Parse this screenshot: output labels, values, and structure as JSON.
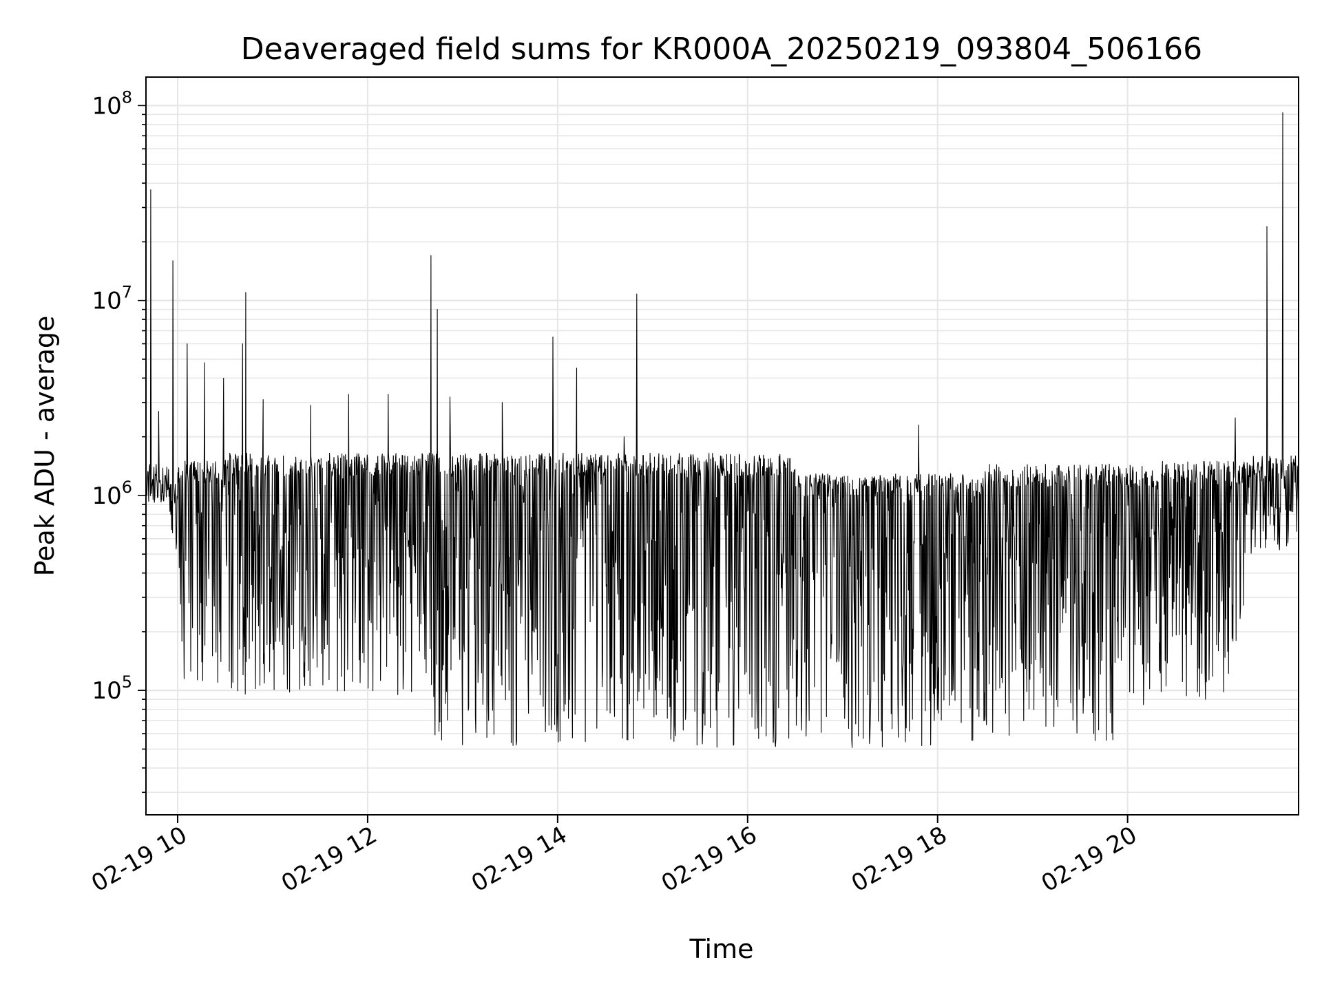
{
  "chart_data": {
    "type": "line",
    "title": "Deaveraged field sums for KR000A_20250219_093804_506166",
    "xlabel": "Time",
    "ylabel": "Peak ADU - average",
    "yscale": "log",
    "grid": true,
    "line_color": "#000000",
    "xlim": [
      "2025-02-19 09:40",
      "2025-02-19 21:48"
    ],
    "ylim": [
      23000,
      140000000
    ],
    "x_ticks": [
      {
        "t": "2025-02-19 10:00",
        "label": "02-19 10"
      },
      {
        "t": "2025-02-19 12:00",
        "label": "02-19 12"
      },
      {
        "t": "2025-02-19 14:00",
        "label": "02-19 14"
      },
      {
        "t": "2025-02-19 16:00",
        "label": "02-19 16"
      },
      {
        "t": "2025-02-19 18:00",
        "label": "02-19 18"
      },
      {
        "t": "2025-02-19 20:00",
        "label": "02-19 20"
      }
    ],
    "y_ticks": [
      {
        "value": 100000,
        "base": "10",
        "exp": "5"
      },
      {
        "value": 1000000,
        "base": "10",
        "exp": "6"
      },
      {
        "value": 10000000,
        "base": "10",
        "exp": "7"
      },
      {
        "value": 100000000,
        "base": "10",
        "exp": "8"
      }
    ],
    "series": [
      {
        "style": "dense-signal",
        "x_start": "2025-02-19 09:40",
        "x_end": "2025-02-19 21:48",
        "segments": [
          {
            "t0": "2025-02-19 09:40",
            "t1": "2025-02-19 09:55",
            "upper": 1500000,
            "lower": 900000
          },
          {
            "t0": "2025-02-19 09:55",
            "t1": "2025-02-19 10:00",
            "upper": 1200000,
            "lower": 400000
          },
          {
            "t0": "2025-02-19 10:00",
            "t1": "2025-02-19 10:30",
            "upper": 1500000,
            "lower": 90000
          },
          {
            "t0": "2025-02-19 10:30",
            "t1": "2025-02-19 12:40",
            "upper": 1650000,
            "lower": 95000
          },
          {
            "t0": "2025-02-19 12:40",
            "t1": "2025-02-19 16:30",
            "upper": 1650000,
            "lower": 50000
          },
          {
            "t0": "2025-02-19 16:30",
            "t1": "2025-02-19 18:30",
            "upper": 1300000,
            "lower": 50000
          },
          {
            "t0": "2025-02-19 18:30",
            "t1": "2025-02-19 20:20",
            "upper": 1450000,
            "lower": 55000
          },
          {
            "t0": "2025-02-19 20:20",
            "t1": "2025-02-19 21:15",
            "upper": 1500000,
            "lower": 90000
          },
          {
            "t0": "2025-02-19 21:15",
            "t1": "2025-02-19 21:48",
            "upper": 1600000,
            "lower": 500000
          }
        ],
        "spikes": [
          {
            "t": "2025-02-19 09:43",
            "value": 37000000
          },
          {
            "t": "2025-02-19 09:48",
            "value": 2700000
          },
          {
            "t": "2025-02-19 09:57",
            "value": 16000000
          },
          {
            "t": "2025-02-19 10:06",
            "value": 6000000
          },
          {
            "t": "2025-02-19 10:17",
            "value": 4800000
          },
          {
            "t": "2025-02-19 10:29",
            "value": 4000000
          },
          {
            "t": "2025-02-19 10:41",
            "value": 6000000
          },
          {
            "t": "2025-02-19 10:43",
            "value": 11000000
          },
          {
            "t": "2025-02-19 10:54",
            "value": 3100000
          },
          {
            "t": "2025-02-19 11:24",
            "value": 2900000
          },
          {
            "t": "2025-02-19 11:48",
            "value": 3300000
          },
          {
            "t": "2025-02-19 12:13",
            "value": 3300000
          },
          {
            "t": "2025-02-19 12:40",
            "value": 17000000
          },
          {
            "t": "2025-02-19 12:44",
            "value": 9000000
          },
          {
            "t": "2025-02-19 12:52",
            "value": 3200000
          },
          {
            "t": "2025-02-19 13:25",
            "value": 3000000
          },
          {
            "t": "2025-02-19 13:57",
            "value": 6500000
          },
          {
            "t": "2025-02-19 14:12",
            "value": 4500000
          },
          {
            "t": "2025-02-19 14:42",
            "value": 2000000
          },
          {
            "t": "2025-02-19 14:50",
            "value": 10800000
          },
          {
            "t": "2025-02-19 17:48",
            "value": 2300000
          },
          {
            "t": "2025-02-19 21:08",
            "value": 2500000
          },
          {
            "t": "2025-02-19 21:28",
            "value": 24000000
          },
          {
            "t": "2025-02-19 21:38",
            "value": 92000000
          }
        ]
      }
    ]
  }
}
